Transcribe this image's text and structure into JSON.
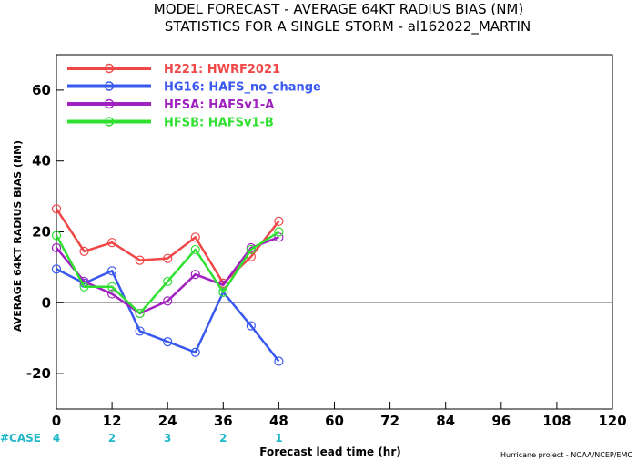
{
  "title_line1": "MODEL FORECAST - AVERAGE 64KT RADIUS BIAS (NM)",
  "title_line2": "STATISTICS FOR A SINGLE STORM - al162022_MARTIN",
  "credit": "Hurricane project - NOAA/NCEP/EMC",
  "case_label": "#CASE",
  "chart_data": {
    "type": "line",
    "title": "MODEL FORECAST - AVERAGE 64KT RADIUS BIAS (NM)",
    "subtitle": "STATISTICS FOR A SINGLE STORM - al162022_MARTIN",
    "xlabel": "Forecast lead time (hr)",
    "ylabel": "AVERAGE 64KT RADIUS BIAS (NM)",
    "xlim": [
      0,
      120
    ],
    "ylim": [
      -30,
      70
    ],
    "xticks": [
      0,
      12,
      24,
      36,
      48,
      60,
      72,
      84,
      96,
      108,
      120
    ],
    "yticks": [
      -20,
      0,
      20,
      40,
      60
    ],
    "zero_line": true,
    "grid": false,
    "legend_position": "top-left",
    "case_counts": [
      {
        "x": 0,
        "n": "4"
      },
      {
        "x": 12,
        "n": "2"
      },
      {
        "x": 24,
        "n": "3"
      },
      {
        "x": 36,
        "n": "2"
      },
      {
        "x": 48,
        "n": "1"
      }
    ],
    "series": [
      {
        "name": "H221: HWRF2021",
        "color": "#f04848",
        "x": [
          0,
          6,
          12,
          18,
          24,
          30,
          36,
          42,
          48
        ],
        "y": [
          26.5,
          14.5,
          17,
          12,
          12.5,
          18.5,
          5.5,
          13,
          23
        ]
      },
      {
        "name": "HG16: HAFS_no_change",
        "color": "#3858f0",
        "x": [
          0,
          6,
          12,
          18,
          24,
          30,
          36,
          42,
          48
        ],
        "y": [
          9.5,
          5.5,
          9,
          -8,
          -11,
          -14,
          3,
          -6.5,
          -16.5
        ]
      },
      {
        "name": "HFSA: HAFSv1-A",
        "color": "#a020c0",
        "x": [
          0,
          6,
          12,
          18,
          24,
          30,
          36,
          42,
          48
        ],
        "y": [
          15.5,
          6,
          2.5,
          -3,
          0.5,
          8,
          5,
          15.5,
          18.5
        ]
      },
      {
        "name": "HFSB: HAFSv1-B",
        "color": "#30e030",
        "x": [
          0,
          6,
          12,
          18,
          24,
          30,
          36,
          42,
          48
        ],
        "y": [
          19,
          4.5,
          4.5,
          -3,
          6,
          15,
          3,
          15,
          20
        ]
      }
    ]
  }
}
